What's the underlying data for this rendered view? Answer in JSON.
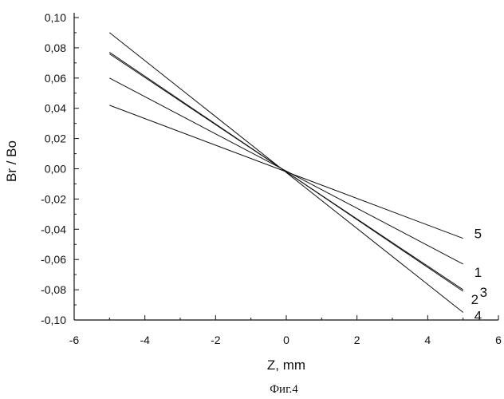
{
  "chart_data": {
    "type": "line",
    "title": "",
    "xlabel": "Z, mm",
    "ylabel": "Br / Bo",
    "xlim": [
      -6,
      6
    ],
    "ylim": [
      -0.1,
      0.1
    ],
    "xticks": [
      -6,
      -4,
      -2,
      0,
      2,
      4,
      6
    ],
    "xtick_labels": [
      "-6",
      "-4",
      "-2",
      "0",
      "2",
      "4",
      "6"
    ],
    "yticks": [
      0.1,
      0.08,
      0.06,
      0.04,
      0.02,
      0.0,
      -0.02,
      -0.04,
      -0.06,
      -0.08,
      -0.1
    ],
    "ytick_labels": [
      "0,10",
      "0,08",
      "0,06",
      "0,04",
      "0,02",
      "0,00",
      "-0,02",
      "-0,04",
      "-0,06",
      "-0,08",
      "-0,10"
    ],
    "grid": false,
    "series": [
      {
        "name": "1",
        "x": [
          -5,
          5
        ],
        "y": [
          0.06,
          -0.063
        ],
        "color": "#111111"
      },
      {
        "name": "2",
        "x": [
          -5,
          0,
          5
        ],
        "y": [
          0.077,
          -0.002,
          -0.081
        ],
        "color": "#111111"
      },
      {
        "name": "3",
        "x": [
          -5,
          0,
          5
        ],
        "y": [
          0.076,
          -0.002,
          -0.08
        ],
        "color": "#111111"
      },
      {
        "name": "4",
        "x": [
          -5,
          5
        ],
        "y": [
          0.09,
          -0.095
        ],
        "color": "#111111"
      },
      {
        "name": "5",
        "x": [
          -5,
          5
        ],
        "y": [
          0.042,
          -0.046
        ],
        "color": "#111111"
      }
    ]
  },
  "caption": "Фиг.4"
}
